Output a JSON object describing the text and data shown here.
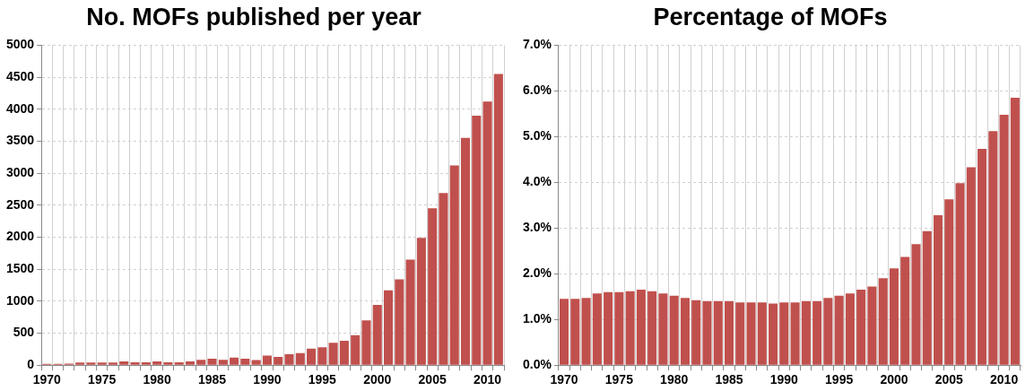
{
  "chart_data": [
    {
      "type": "bar",
      "title": "No. MOFs published per year",
      "categories": [
        "1970",
        null,
        null,
        null,
        null,
        "1975",
        null,
        null,
        null,
        null,
        "1980",
        null,
        null,
        null,
        null,
        "1985",
        null,
        null,
        null,
        null,
        "1990",
        null,
        null,
        null,
        null,
        "1995",
        null,
        null,
        null,
        null,
        "2000",
        null,
        null,
        null,
        null,
        "2005",
        null,
        null,
        null,
        null,
        "2010",
        null
      ],
      "values": [
        20,
        20,
        25,
        40,
        40,
        40,
        40,
        60,
        45,
        45,
        60,
        45,
        45,
        60,
        85,
        100,
        85,
        120,
        100,
        80,
        150,
        130,
        170,
        190,
        260,
        280,
        350,
        380,
        470,
        700,
        940,
        1170,
        1340,
        1650,
        1990,
        2450,
        2690,
        3120,
        3550,
        3900,
        4120,
        4550
      ],
      "color": "#c0504d",
      "ylim": [
        0,
        5000
      ],
      "yticks": [
        0,
        500,
        1000,
        1500,
        2000,
        2500,
        3000,
        3500,
        4000,
        4500,
        5000
      ],
      "grid": true,
      "legend": false
    },
    {
      "type": "bar",
      "title": "Percentage of MOFs",
      "categories": [
        "1970",
        null,
        null,
        null,
        null,
        "1975",
        null,
        null,
        null,
        null,
        "1980",
        null,
        null,
        null,
        null,
        "1985",
        null,
        null,
        null,
        null,
        "1990",
        null,
        null,
        null,
        null,
        "1995",
        null,
        null,
        null,
        null,
        "2000",
        null,
        null,
        null,
        null,
        "2005",
        null,
        null,
        null,
        null,
        "2010",
        null
      ],
      "values": [
        1.45,
        1.45,
        1.47,
        1.57,
        1.6,
        1.6,
        1.62,
        1.65,
        1.62,
        1.57,
        1.52,
        1.47,
        1.42,
        1.4,
        1.4,
        1.4,
        1.37,
        1.37,
        1.37,
        1.35,
        1.37,
        1.37,
        1.4,
        1.4,
        1.47,
        1.52,
        1.57,
        1.65,
        1.72,
        1.9,
        2.12,
        2.37,
        2.65,
        2.93,
        3.28,
        3.63,
        3.98,
        4.33,
        4.73,
        5.12,
        5.48,
        5.85
      ],
      "color": "#c0504d",
      "ylim": [
        0,
        7
      ],
      "yticks": [
        {
          "value": 0,
          "label": "0.0%"
        },
        {
          "value": 1,
          "label": "1.0%"
        },
        {
          "value": 2,
          "label": "2.0%"
        },
        {
          "value": 3,
          "label": "3.0%"
        },
        {
          "value": 4,
          "label": "4.0%"
        },
        {
          "value": 5,
          "label": "5.0%"
        },
        {
          "value": 6,
          "label": "6.0%"
        },
        {
          "value": 7,
          "label": "7.0%"
        }
      ],
      "grid": true,
      "legend": false
    }
  ]
}
